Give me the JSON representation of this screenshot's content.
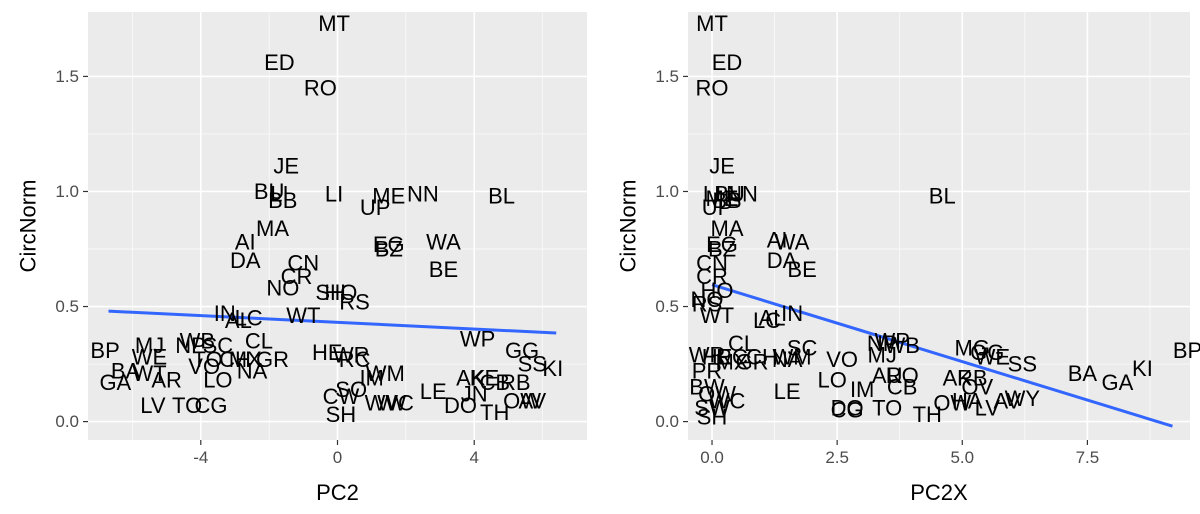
{
  "chart_data": [
    {
      "type": "scatter",
      "xlabel": "PC2",
      "ylabel": "CircNorm",
      "xlim": [
        -7.3,
        7.3
      ],
      "ylim": [
        -0.08,
        1.78
      ],
      "xticks": [
        -4,
        0,
        4
      ],
      "xtick_labels": [
        "-4",
        "0",
        "4"
      ],
      "xminor": [
        -6,
        -2,
        2,
        6
      ],
      "yticks": [
        0.0,
        0.5,
        1.0,
        1.5
      ],
      "ytick_labels": [
        "0.0",
        "0.5",
        "1.0",
        "1.5"
      ],
      "yminor": [
        0.25,
        0.75,
        1.25
      ],
      "grid": true,
      "trend": {
        "x": [
          -6.7,
          6.4
        ],
        "y": [
          0.48,
          0.385
        ]
      },
      "points": [
        {
          "label": "MT",
          "x": -0.1,
          "y": 1.73
        },
        {
          "label": "ED",
          "x": -1.7,
          "y": 1.56
        },
        {
          "label": "RO",
          "x": -0.5,
          "y": 1.45
        },
        {
          "label": "JE",
          "x": -1.5,
          "y": 1.11
        },
        {
          "label": "BU",
          "x": -2.0,
          "y": 1.0
        },
        {
          "label": "LI",
          "x": -1.7,
          "y": 0.99
        },
        {
          "label": "BB",
          "x": -1.6,
          "y": 0.96
        },
        {
          "label": "LI",
          "x": -0.1,
          "y": 0.99
        },
        {
          "label": "ME",
          "x": 1.5,
          "y": 0.98
        },
        {
          "label": "NN",
          "x": 2.5,
          "y": 0.99
        },
        {
          "label": "BL",
          "x": 4.8,
          "y": 0.98
        },
        {
          "label": "UP",
          "x": 1.1,
          "y": 0.93
        },
        {
          "label": "MA",
          "x": -1.9,
          "y": 0.84
        },
        {
          "label": "AI",
          "x": -2.7,
          "y": 0.78
        },
        {
          "label": "EG",
          "x": 1.5,
          "y": 0.77
        },
        {
          "label": "BZ",
          "x": 1.5,
          "y": 0.75
        },
        {
          "label": "WA",
          "x": 3.1,
          "y": 0.78
        },
        {
          "label": "DA",
          "x": -2.7,
          "y": 0.7
        },
        {
          "label": "CN",
          "x": -1.0,
          "y": 0.69
        },
        {
          "label": "CR",
          "x": -1.2,
          "y": 0.63
        },
        {
          "label": "BE",
          "x": 3.1,
          "y": 0.66
        },
        {
          "label": "NO",
          "x": -1.6,
          "y": 0.58
        },
        {
          "label": "SH",
          "x": -0.2,
          "y": 0.56
        },
        {
          "label": "HO",
          "x": 0.1,
          "y": 0.56
        },
        {
          "label": "RS",
          "x": 0.5,
          "y": 0.52
        },
        {
          "label": "IN",
          "x": -3.3,
          "y": 0.47
        },
        {
          "label": "AL",
          "x": -2.9,
          "y": 0.44
        },
        {
          "label": "LC",
          "x": -2.6,
          "y": 0.45
        },
        {
          "label": "WT",
          "x": -1.0,
          "y": 0.46
        },
        {
          "label": "WP",
          "x": 4.1,
          "y": 0.36
        },
        {
          "label": "BP",
          "x": -6.8,
          "y": 0.31
        },
        {
          "label": "MJ",
          "x": -5.5,
          "y": 0.33
        },
        {
          "label": "WB",
          "x": -4.1,
          "y": 0.35
        },
        {
          "label": "NP",
          "x": -4.3,
          "y": 0.33
        },
        {
          "label": "SC",
          "x": -3.5,
          "y": 0.33
        },
        {
          "label": "CL",
          "x": -2.3,
          "y": 0.35
        },
        {
          "label": "WE",
          "x": -5.5,
          "y": 0.28
        },
        {
          "label": "TO",
          "x": -3.8,
          "y": 0.27
        },
        {
          "label": "CH",
          "x": -3.0,
          "y": 0.27
        },
        {
          "label": "MX",
          "x": -2.7,
          "y": 0.27
        },
        {
          "label": "GR",
          "x": -1.9,
          "y": 0.27
        },
        {
          "label": "HE",
          "x": -0.3,
          "y": 0.3
        },
        {
          "label": "WR",
          "x": 0.4,
          "y": 0.29
        },
        {
          "label": "RC",
          "x": 0.5,
          "y": 0.27
        },
        {
          "label": "GG",
          "x": 5.4,
          "y": 0.31
        },
        {
          "label": "SS",
          "x": 5.7,
          "y": 0.25
        },
        {
          "label": "KI",
          "x": 6.3,
          "y": 0.23
        },
        {
          "label": "BA",
          "x": -6.2,
          "y": 0.22
        },
        {
          "label": "WT",
          "x": -5.5,
          "y": 0.21
        },
        {
          "label": "VO",
          "x": -3.9,
          "y": 0.24
        },
        {
          "label": "NA",
          "x": -2.5,
          "y": 0.22
        },
        {
          "label": "GA",
          "x": -6.5,
          "y": 0.17
        },
        {
          "label": "AR",
          "x": -5.0,
          "y": 0.18
        },
        {
          "label": "LO",
          "x": -3.5,
          "y": 0.18
        },
        {
          "label": "WM",
          "x": 1.4,
          "y": 0.21
        },
        {
          "label": "IM",
          "x": 1.0,
          "y": 0.19
        },
        {
          "label": "AK",
          "x": 3.9,
          "y": 0.19
        },
        {
          "label": "KE",
          "x": 4.3,
          "y": 0.19
        },
        {
          "label": "CB",
          "x": 4.6,
          "y": 0.17
        },
        {
          "label": "RB",
          "x": 5.2,
          "y": 0.17
        },
        {
          "label": "SO",
          "x": 0.4,
          "y": 0.14
        },
        {
          "label": "LE",
          "x": 2.8,
          "y": 0.13
        },
        {
          "label": "JN",
          "x": 4.0,
          "y": 0.12
        },
        {
          "label": "CW",
          "x": 0.1,
          "y": 0.11
        },
        {
          "label": "WW",
          "x": 1.4,
          "y": 0.08
        },
        {
          "label": "WC",
          "x": 1.7,
          "y": 0.08
        },
        {
          "label": "LV",
          "x": -5.4,
          "y": 0.07
        },
        {
          "label": "TO",
          "x": -4.4,
          "y": 0.07
        },
        {
          "label": "CG",
          "x": -3.7,
          "y": 0.07
        },
        {
          "label": "DO",
          "x": 3.6,
          "y": 0.07
        },
        {
          "label": "TH",
          "x": 4.6,
          "y": 0.04
        },
        {
          "label": "OW",
          "x": 5.4,
          "y": 0.09
        },
        {
          "label": "AV",
          "x": 5.7,
          "y": 0.09
        },
        {
          "label": "SH",
          "x": 0.1,
          "y": 0.03
        }
      ]
    },
    {
      "type": "scatter",
      "xlabel": "PC2X",
      "ylabel": "CircNorm",
      "xlim": [
        -0.48,
        9.55
      ],
      "ylim": [
        -0.08,
        1.78
      ],
      "xticks": [
        0,
        2.5,
        5,
        7.5
      ],
      "xtick_labels": [
        "0.0",
        "2.5",
        "5.0",
        "7.5"
      ],
      "xminor": [
        1.25,
        3.75,
        6.25,
        8.75
      ],
      "yticks": [
        0.0,
        0.5,
        1.0,
        1.5
      ],
      "ytick_labels": [
        "0.0",
        "0.5",
        "1.0",
        "1.5"
      ],
      "yminor": [
        0.25,
        0.75,
        1.25
      ],
      "grid": true,
      "trend": {
        "x": [
          0.0,
          9.2
        ],
        "y": [
          0.595,
          -0.02
        ]
      },
      "points": [
        {
          "label": "MT",
          "x": 0.0,
          "y": 1.73
        },
        {
          "label": "ED",
          "x": 0.3,
          "y": 1.56
        },
        {
          "label": "RO",
          "x": 0.0,
          "y": 1.45
        },
        {
          "label": "JE",
          "x": 0.2,
          "y": 1.11
        },
        {
          "label": "LI",
          "x": 0.0,
          "y": 0.99
        },
        {
          "label": "BU",
          "x": 0.35,
          "y": 0.99
        },
        {
          "label": "NN",
          "x": 0.6,
          "y": 0.99
        },
        {
          "label": "ME",
          "x": 0.2,
          "y": 0.97
        },
        {
          "label": "BB",
          "x": 0.3,
          "y": 0.96
        },
        {
          "label": "UP",
          "x": 0.1,
          "y": 0.93
        },
        {
          "label": "BL",
          "x": 4.6,
          "y": 0.98
        },
        {
          "label": "MA",
          "x": 0.3,
          "y": 0.84
        },
        {
          "label": "AI",
          "x": 1.3,
          "y": 0.79
        },
        {
          "label": "WA",
          "x": 1.6,
          "y": 0.78
        },
        {
          "label": "EG",
          "x": 0.2,
          "y": 0.77
        },
        {
          "label": "BZ",
          "x": 0.2,
          "y": 0.75
        },
        {
          "label": "DA",
          "x": 1.4,
          "y": 0.7
        },
        {
          "label": "CN",
          "x": 0.0,
          "y": 0.69
        },
        {
          "label": "BE",
          "x": 1.8,
          "y": 0.66
        },
        {
          "label": "CR",
          "x": 0.0,
          "y": 0.63
        },
        {
          "label": "HO",
          "x": 0.1,
          "y": 0.57
        },
        {
          "label": "NO",
          "x": -0.1,
          "y": 0.53
        },
        {
          "label": "RS",
          "x": -0.1,
          "y": 0.51
        },
        {
          "label": "WT",
          "x": 0.1,
          "y": 0.46
        },
        {
          "label": "LC",
          "x": 1.1,
          "y": 0.44
        },
        {
          "label": "IN",
          "x": 1.6,
          "y": 0.47
        },
        {
          "label": "AL",
          "x": 1.2,
          "y": 0.45
        },
        {
          "label": "CL",
          "x": 0.6,
          "y": 0.34
        },
        {
          "label": "SC",
          "x": 1.8,
          "y": 0.32
        },
        {
          "label": "NP",
          "x": 3.4,
          "y": 0.34
        },
        {
          "label": "WP",
          "x": 3.6,
          "y": 0.35
        },
        {
          "label": "WB",
          "x": 3.8,
          "y": 0.33
        },
        {
          "label": "MG",
          "x": 5.2,
          "y": 0.32
        },
        {
          "label": "GG",
          "x": 5.5,
          "y": 0.3
        },
        {
          "label": "WR",
          "x": -0.1,
          "y": 0.29
        },
        {
          "label": "HE",
          "x": 0.1,
          "y": 0.28
        },
        {
          "label": "RC",
          "x": 0.4,
          "y": 0.28
        },
        {
          "label": "CH",
          "x": 1.0,
          "y": 0.28
        },
        {
          "label": "NA",
          "x": 1.5,
          "y": 0.27
        },
        {
          "label": "MX",
          "x": 0.4,
          "y": 0.26
        },
        {
          "label": "GR",
          "x": 0.8,
          "y": 0.26
        },
        {
          "label": "WM",
          "x": 1.6,
          "y": 0.28
        },
        {
          "label": "VO",
          "x": 2.6,
          "y": 0.27
        },
        {
          "label": "MJ",
          "x": 3.4,
          "y": 0.29
        },
        {
          "label": "WE",
          "x": 5.6,
          "y": 0.28
        },
        {
          "label": "SS",
          "x": 6.2,
          "y": 0.25
        },
        {
          "label": "BA",
          "x": 7.4,
          "y": 0.21
        },
        {
          "label": "GA",
          "x": 8.1,
          "y": 0.17
        },
        {
          "label": "KI",
          "x": 8.6,
          "y": 0.23
        },
        {
          "label": "BP",
          "x": 9.5,
          "y": 0.31
        },
        {
          "label": "PR",
          "x": -0.1,
          "y": 0.22
        },
        {
          "label": "LO",
          "x": 2.4,
          "y": 0.18
        },
        {
          "label": "AU",
          "x": 3.5,
          "y": 0.2
        },
        {
          "label": "RO",
          "x": 3.8,
          "y": 0.2
        },
        {
          "label": "AK",
          "x": 4.9,
          "y": 0.19
        },
        {
          "label": "RB",
          "x": 5.2,
          "y": 0.19
        },
        {
          "label": "BW",
          "x": -0.1,
          "y": 0.15
        },
        {
          "label": "IM",
          "x": 3.0,
          "y": 0.14
        },
        {
          "label": "CB",
          "x": 3.8,
          "y": 0.15
        },
        {
          "label": "OV",
          "x": 5.3,
          "y": 0.15
        },
        {
          "label": "LE",
          "x": 1.5,
          "y": 0.13
        },
        {
          "label": "HA",
          "x": 5.1,
          "y": 0.09
        },
        {
          "label": "AV",
          "x": 5.9,
          "y": 0.09
        },
        {
          "label": "WY",
          "x": 6.2,
          "y": 0.1
        },
        {
          "label": "OW",
          "x": 4.8,
          "y": 0.08
        },
        {
          "label": "OW",
          "x": 0.1,
          "y": 0.12
        },
        {
          "label": "WC",
          "x": 0.3,
          "y": 0.09
        },
        {
          "label": "TO",
          "x": 3.5,
          "y": 0.06
        },
        {
          "label": "DO",
          "x": 2.7,
          "y": 0.06
        },
        {
          "label": "CG",
          "x": 2.7,
          "y": 0.05
        },
        {
          "label": "TH",
          "x": 4.3,
          "y": 0.03
        },
        {
          "label": "LV",
          "x": 5.5,
          "y": 0.06
        },
        {
          "label": "SW",
          "x": 0.0,
          "y": 0.06
        },
        {
          "label": "SH",
          "x": 0.0,
          "y": 0.02
        }
      ]
    }
  ]
}
